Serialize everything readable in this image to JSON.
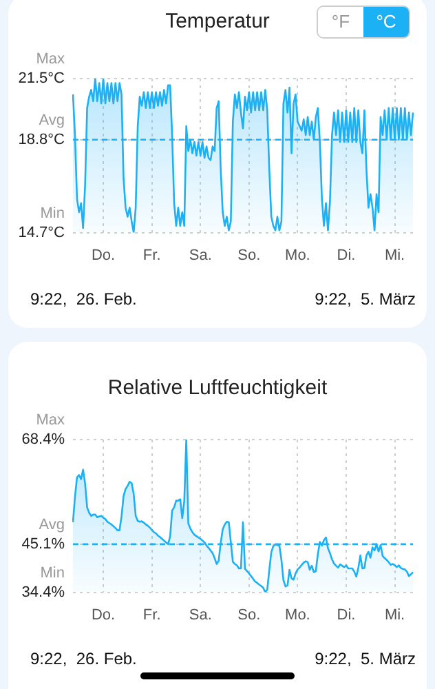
{
  "chart_data": [
    {
      "type": "area",
      "title": "Temperatur",
      "color": "#1cb0f5",
      "ylim": [
        14.7,
        21.5
      ],
      "grid": true,
      "categories": [
        null,
        null,
        null,
        null,
        null,
        null,
        null,
        null,
        null,
        null,
        null,
        null,
        null,
        null,
        null,
        "Do.",
        null,
        null,
        null,
        null,
        null,
        null,
        null,
        null,
        null,
        null,
        null,
        null,
        null,
        null,
        null,
        null,
        null,
        null,
        null,
        null,
        null,
        null,
        null,
        "Fr.",
        null,
        null,
        null,
        null,
        null,
        null,
        null,
        null,
        null,
        null,
        null,
        null,
        null,
        null,
        null,
        null,
        null,
        null,
        null,
        null,
        null,
        null,
        null,
        "Sa.",
        null,
        null,
        null,
        null,
        null,
        null,
        null,
        null,
        null,
        null,
        null,
        null,
        null,
        null,
        null,
        null,
        null,
        null,
        null,
        null,
        null,
        null,
        null,
        "So.",
        null,
        null,
        null,
        null,
        null,
        null,
        null,
        null,
        null,
        null,
        null,
        null,
        null,
        null,
        null,
        null,
        null,
        null,
        null,
        null,
        null,
        null,
        null,
        "Mo.",
        null,
        null,
        null,
        null,
        null,
        null,
        null,
        null,
        null,
        null,
        null,
        null,
        null,
        null,
        null,
        null,
        null,
        null,
        null,
        null,
        null,
        null,
        null,
        "Di.",
        null,
        null,
        null,
        null,
        null,
        null,
        null,
        null,
        null,
        null,
        null,
        null,
        null,
        null,
        null,
        null,
        null,
        null,
        null,
        null,
        null,
        null,
        null,
        "Mi.",
        null,
        null,
        null,
        null,
        null,
        null,
        null,
        null,
        null
      ],
      "yticks": [
        {
          "value": 14.7,
          "label": "14.7°C"
        },
        {
          "value": 18.8,
          "label": "18.8°C"
        },
        {
          "value": 21.5,
          "label": "21.5°C"
        }
      ],
      "ref_lines": [
        {
          "axis": "y",
          "value": 18.8,
          "label": "Avg",
          "color": "#1cb0f5",
          "line_style": "dashed"
        }
      ],
      "annotations": [
        "Max",
        "Min",
        "9:22,  26. Feb.",
        "9:22,  5. März",
        "°F",
        "°C"
      ],
      "values": [
        20.8,
        19.0,
        16.2,
        15.6,
        16.0,
        14.9,
        16.8,
        20.2,
        20.7,
        21.0,
        20.5,
        21.5,
        20.5,
        21.3,
        20.4,
        21.5,
        20.4,
        21.3,
        20.5,
        21.3,
        20.4,
        21.3,
        20.5,
        21.3,
        20.8,
        17.1,
        15.8,
        15.4,
        15.8,
        15.2,
        14.7,
        15.8,
        19.4,
        20.7,
        20.3,
        20.9,
        20.2,
        20.9,
        20.2,
        20.9,
        20.2,
        20.9,
        20.3,
        20.9,
        20.3,
        21.0,
        20.4,
        21.2,
        21.2,
        19.0,
        16.0,
        15.0,
        15.8,
        15.0,
        15.6,
        15.0,
        19.4,
        18.3,
        18.8,
        18.2,
        18.7,
        18.1,
        18.7,
        18.1,
        18.7,
        18.0,
        18.5,
        18.0,
        17.9,
        18.5,
        18.3,
        20.2,
        20.5,
        17.5,
        15.6,
        15.0,
        15.4,
        14.8,
        15.2,
        19.6,
        20.8,
        20.2,
        20.9,
        20.0,
        19.3,
        20.7,
        20.1,
        20.9,
        20.0,
        20.9,
        20.1,
        20.9,
        20.1,
        20.9,
        20.1,
        21.0,
        20.1,
        17.5,
        15.4,
        15.0,
        14.8,
        15.4,
        14.8,
        15.2,
        20.4,
        21.0,
        20.0,
        21.1,
        18.2,
        20.4,
        20.8,
        19.6,
        19.4,
        19.2,
        19.7,
        19.0,
        19.8,
        19.0,
        19.6,
        18.8,
        19.8,
        20.2,
        18.7,
        16.2,
        15.0,
        16.0,
        14.8,
        16.1,
        19.0,
        20.0,
        19.0,
        20.1,
        18.7,
        20.0,
        18.7,
        20.1,
        18.7,
        20.0,
        18.7,
        20.2,
        18.7,
        20.1,
        18.7,
        18.2,
        20.1,
        17.5,
        15.8,
        16.4,
        15.8,
        14.8,
        16.4,
        15.6,
        19.8,
        19.0,
        20.1,
        18.8,
        20.2,
        18.8,
        20.2,
        18.8,
        20.2,
        18.8,
        20.2,
        18.8,
        20.2,
        18.8,
        20.0,
        19.0,
        20.0
      ]
    },
    {
      "type": "area",
      "title": "Relative Luftfeuchtigkeit",
      "color": "#1cb0f5",
      "ylim": [
        34.4,
        68.4
      ],
      "grid": true,
      "categories": [
        null,
        null,
        null,
        null,
        null,
        null,
        null,
        null,
        null,
        null,
        null,
        null,
        null,
        null,
        null,
        "Do.",
        null,
        null,
        null,
        null,
        null,
        null,
        null,
        null,
        null,
        null,
        null,
        null,
        null,
        null,
        null,
        null,
        null,
        null,
        null,
        null,
        null,
        null,
        null,
        "Fr.",
        null,
        null,
        null,
        null,
        null,
        null,
        null,
        null,
        null,
        null,
        null,
        null,
        null,
        null,
        null,
        null,
        null,
        null,
        null,
        null,
        null,
        null,
        null,
        "Sa.",
        null,
        null,
        null,
        null,
        null,
        null,
        null,
        null,
        null,
        null,
        null,
        null,
        null,
        null,
        null,
        null,
        null,
        null,
        null,
        null,
        null,
        null,
        null,
        "So.",
        null,
        null,
        null,
        null,
        null,
        null,
        null,
        null,
        null,
        null,
        null,
        null,
        null,
        null,
        null,
        null,
        null,
        null,
        null,
        null,
        null,
        null,
        null,
        "Mo.",
        null,
        null,
        null,
        null,
        null,
        null,
        null,
        null,
        null,
        null,
        null,
        null,
        null,
        null,
        null,
        null,
        null,
        null,
        null,
        null,
        null,
        null,
        null,
        "Di.",
        null,
        null,
        null,
        null,
        null,
        null,
        null,
        null,
        null,
        null,
        null,
        null,
        null,
        null,
        null,
        null,
        null,
        null,
        null,
        null,
        null,
        null,
        null,
        "Mi.",
        null,
        null,
        null,
        null,
        null,
        null,
        null,
        null,
        null
      ],
      "yticks": [
        {
          "value": 34.4,
          "label": "34.4%"
        },
        {
          "value": 45.1,
          "label": "45.1%"
        },
        {
          "value": 68.4,
          "label": "68.4%"
        }
      ],
      "ref_lines": [
        {
          "axis": "y",
          "value": 45.1,
          "label": "Avg",
          "color": "#1cb0f5",
          "line_style": "dashed"
        }
      ],
      "annotations": [
        "Max",
        "Min",
        "9:22,  26. Feb.",
        "9:22,  5. März"
      ],
      "values": [
        50.0,
        55.7,
        60.0,
        60.5,
        59.6,
        61.7,
        58.6,
        53.3,
        52.1,
        51.4,
        51.7,
        51.7,
        51.1,
        51.3,
        51.4,
        51.0,
        50.7,
        50.1,
        49.8,
        49.5,
        49.1,
        48.7,
        48.2,
        48.2,
        51.3,
        55.8,
        57.4,
        58.1,
        59.0,
        58.7,
        56.3,
        51.4,
        50.3,
        50.1,
        50.2,
        49.9,
        49.5,
        49.2,
        48.8,
        48.3,
        47.8,
        47.5,
        47.0,
        46.7,
        46.3,
        45.9,
        45.5,
        45.1,
        46.8,
        52.6,
        53.3,
        54.8,
        54.8,
        55.1,
        50.9,
        54.8,
        68.4,
        49.7,
        48.6,
        47.8,
        47.2,
        46.9,
        46.6,
        46.3,
        45.9,
        45.5,
        44.8,
        44.3,
        43.7,
        43.1,
        42.0,
        40.7,
        41.4,
        45.4,
        48.4,
        49.5,
        50.1,
        50.0,
        45.6,
        41.2,
        40.7,
        40.4,
        39.7,
        39.7,
        50.0,
        39.6,
        39.1,
        38.6,
        38.0,
        37.4,
        36.8,
        36.5,
        36.1,
        35.8,
        35.4,
        34.4,
        35.0,
        39.3,
        43.3,
        44.7,
        45.1,
        44.9,
        44.8,
        41.6,
        37.1,
        35.7,
        35.9,
        39.4,
        37.5,
        37.2,
        38.6,
        39.5,
        39.9,
        40.5,
        41.0,
        41.3,
        41.1,
        39.4,
        40.3,
        38.9,
        39.1,
        42.9,
        45.6,
        44.8,
        46.0,
        46.6,
        44.2,
        43.1,
        41.7,
        40.8,
        40.3,
        39.9,
        40.6,
        40.3,
        40.0,
        40.4,
        39.7,
        39.7,
        39.7,
        39.0,
        37.9,
        39.8,
        42.6,
        39.7,
        39.8,
        42.6,
        43.4,
        42.1,
        44.4,
        43.7,
        45.1,
        43.5,
        44.9,
        42.5,
        42.0,
        41.6,
        41.1,
        40.5,
        40.7,
        40.4,
        40.0,
        40.4,
        39.8,
        39.6,
        39.5,
        39.0,
        38.0,
        38.4,
        38.9
      ]
    }
  ]
}
